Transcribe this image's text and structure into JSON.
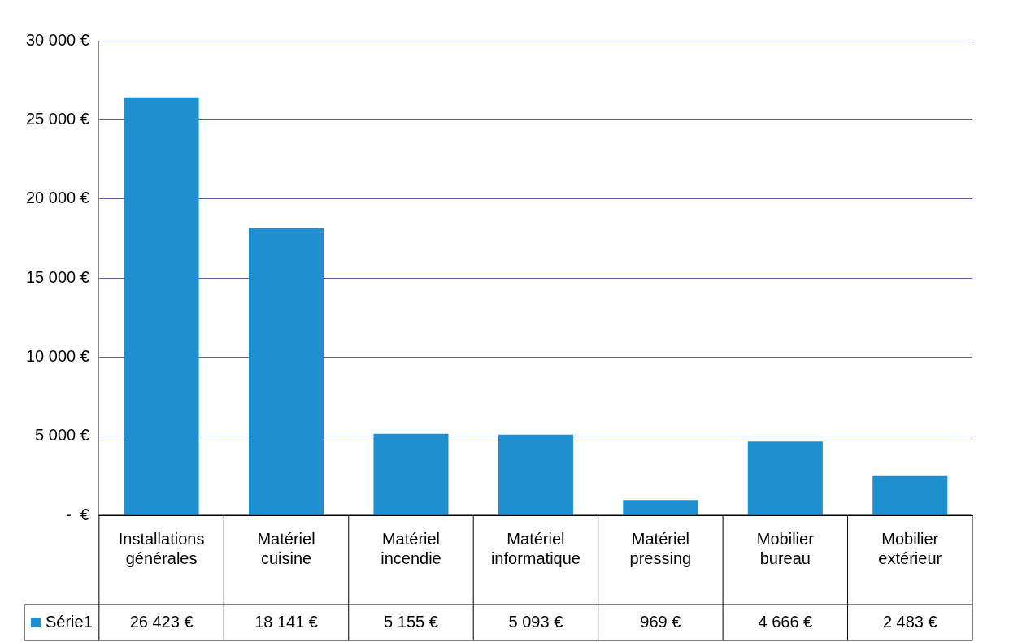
{
  "chart_data": {
    "type": "bar",
    "categories": [
      "Installations générales",
      "Matériel cuisine",
      "Matériel incendie",
      "Matériel informatique",
      "Matériel pressing",
      "Mobilier bureau",
      "Mobilier extérieur"
    ],
    "series": [
      {
        "name": "Série1",
        "color": "#1f8fd0",
        "values": [
          26423,
          18141,
          5155,
          5093,
          969,
          4666,
          2483
        ],
        "value_labels": [
          "26 423 €",
          "18 141 €",
          "5 155 €",
          "5 093 €",
          "969 €",
          "4 666 €",
          "2 483 €"
        ]
      }
    ],
    "ylim": [
      0,
      30000
    ],
    "yticks": [
      {
        "value": 0,
        "label": "-  €"
      },
      {
        "value": 5000,
        "label": "5 000 €"
      },
      {
        "value": 10000,
        "label": "10 000 €"
      },
      {
        "value": 15000,
        "label": "15 000 €"
      },
      {
        "value": 20000,
        "label": "20 000 €"
      },
      {
        "value": 25000,
        "label": "25 000 €"
      },
      {
        "value": 30000,
        "label": "30 000 €"
      }
    ],
    "grid": "y",
    "legend": "bottom",
    "data_labels": true
  }
}
